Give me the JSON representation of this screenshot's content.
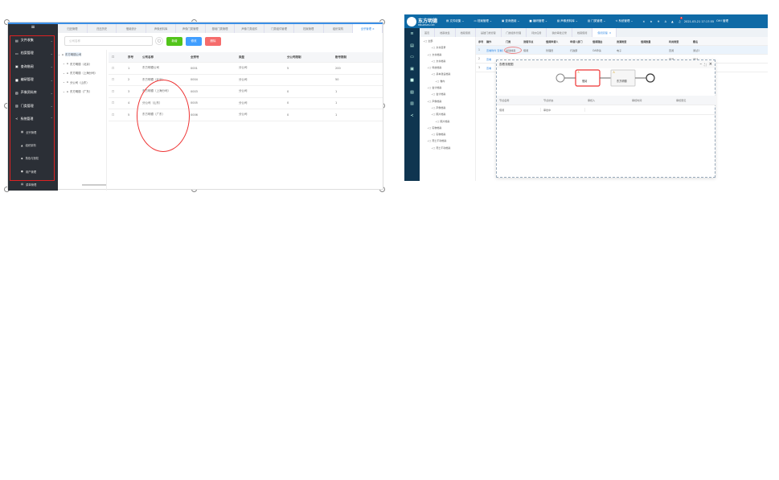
{
  "left_screen": {
    "sidebar": {
      "menu_icon": "hamburger-icon",
      "items": [
        {
          "label": "文件收集",
          "icon": "file-icon"
        },
        {
          "label": "档案管理",
          "icon": "folder-icon"
        },
        {
          "label": "查询借阅",
          "icon": "search-doc-icon"
        },
        {
          "label": "编研管理",
          "icon": "bookmark-icon"
        },
        {
          "label": "声像资料库",
          "icon": "media-icon"
        },
        {
          "label": "门类管理",
          "icon": "category-icon"
        },
        {
          "label": "系统管理",
          "icon": "share-icon"
        }
      ],
      "subitems": [
        {
          "label": "全宗管理"
        },
        {
          "label": "组织架构"
        },
        {
          "label": "角色与授权"
        },
        {
          "label": "用户管理"
        },
        {
          "label": "菜单管理"
        }
      ]
    },
    "tabs": [
      "归还管理",
      "归还历史",
      "借阅统计",
      "声像资料库",
      "声像门类管理",
      "基础门类管理",
      "声像门类组件",
      "门类组件管理",
      "档案管理",
      "组织架构",
      "全宗管理"
    ],
    "active_tab": "全宗管理",
    "search_placeholder": "公司名称",
    "buttons": {
      "add": "新增",
      "edit": "修改",
      "delete": "删除"
    },
    "tree": [
      "东方明德公司",
      "东方明德（北京）",
      "东方明德（上海分司）",
      "分公司（山东）",
      "东方明德（广东）"
    ],
    "table": {
      "headers": [
        "序号",
        "公司名称",
        "全宗号",
        "类型",
        "分公司限制",
        "账号限制"
      ],
      "rows": [
        [
          "1",
          "东方明德公司",
          "0001",
          "分公司",
          "5",
          "200"
        ],
        [
          "2",
          "东方明德（北京）",
          "0004",
          "分公司",
          "",
          "50"
        ],
        [
          "3",
          "东方明德（上海分司）",
          "0003",
          "分公司",
          "0",
          "1"
        ],
        [
          "4",
          "分公司（山东）",
          "0005",
          "分公司",
          "0",
          "1"
        ],
        [
          "5",
          "东方明德（广东）",
          "0006",
          "分公司",
          "0",
          "1"
        ]
      ]
    }
  },
  "right_screen": {
    "logo": {
      "name": "东方明德",
      "sub": "MINGDEDATA.COM"
    },
    "menus": [
      "文件收集",
      "档案管理",
      "查询借阅",
      "编研管理",
      "声像资料库",
      "门类管理",
      "系统管理"
    ],
    "notification_count": "1",
    "datetime": "2021-03-21 17:17:55",
    "user": "OH! 管理",
    "tabs": [
      "首页",
      "档案收集",
      "档案借阅",
      "基础门类管理",
      "门类组件管理",
      "待办任务",
      "我的审批记录",
      "档案借阅",
      "借阅流程"
    ],
    "tree": [
      "全部",
      "文书目录",
      "文书档案",
      "文书档案",
      "科技档案",
      "基本建设档案",
      "卷内",
      "会计档案",
      "会计档案",
      "声像档案",
      "声像档案",
      "照片档案",
      "照片档案",
      "实物档案",
      "实物档案",
      "死亡不动档案",
      "死亡不动档案"
    ],
    "table": {
      "headers": [
        "序号",
        "操作",
        "门类",
        "流程节点",
        "借阅申请人",
        "申请人部门",
        "借阅理由",
        "资源类型",
        "借阅数量",
        "利用类型",
        "题名"
      ],
      "rows": [
        [
          "1",
          "查看附件 查看流程图",
          "基建档案",
          "借阅",
          "管理员",
          "行政部",
          "OA申请",
          "电子",
          "",
          "查阅",
          "测试1"
        ],
        [
          "2",
          "查看",
          "",
          "",
          "",
          "",
          "",
          "",
          "",
          "查阅",
          "测试"
        ],
        [
          "3",
          "查看",
          "",
          "",
          "",
          "",
          "",
          "",
          "",
          "查阅",
          "测试1"
        ]
      ]
    },
    "dialog": {
      "title": "查看流程图",
      "nodes": [
        "借阅",
        "东方明德"
      ],
      "table": {
        "headers": [
          "节点名称",
          "节点状态",
          "审核人",
          "审核时间",
          "审核意见"
        ],
        "rows": [
          [
            "借阅",
            "审批中",
            "",
            "",
            ""
          ]
        ]
      }
    }
  }
}
